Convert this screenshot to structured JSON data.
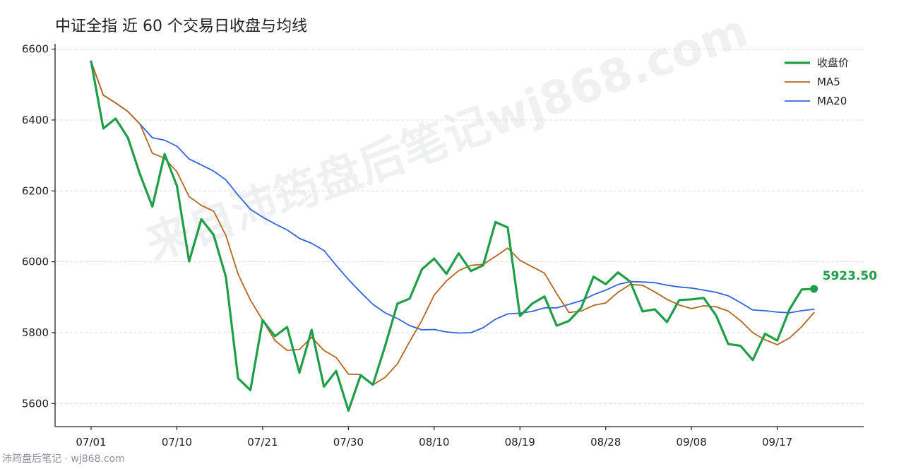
{
  "colors": {
    "close": "#1e9e46",
    "ma5": "#b5651d",
    "ma20": "#2f64dc",
    "grid": "#dddddd",
    "axis": "#222222"
  },
  "watermark": "来自沛筠盘后笔记wj868.com",
  "footer": "沛筠盘后笔记 · wj868.com",
  "chart_data": {
    "type": "line",
    "title": "中证全指 近 60 个交易日收盘与均线",
    "xlabel": "",
    "ylabel": "",
    "ylim": [
      5535,
      6615
    ],
    "yticks": [
      5600,
      5800,
      6000,
      6200,
      6400,
      6600
    ],
    "ytick_labels": [
      "5600",
      "5800",
      "6000",
      "6200",
      "6400",
      "6600"
    ],
    "xticks": [
      0,
      7,
      14,
      21,
      28,
      35,
      42,
      49,
      56
    ],
    "xtick_labels": [
      "07/01",
      "07/10",
      "07/21",
      "07/30",
      "08/10",
      "08/19",
      "08/28",
      "09/08",
      "09/17"
    ],
    "grid": "horizontal dashed",
    "legend_position": "top-right",
    "last_value_label": "5923.50",
    "series": [
      {
        "name": "收盘价",
        "values": [
          6565,
          6376,
          6404,
          6350,
          6246,
          6156,
          6304,
          6214,
          6001,
          6120,
          6076,
          5957,
          5671,
          5638,
          5835,
          5790,
          5816,
          5687,
          5808,
          5648,
          5692,
          5580,
          5680,
          5653,
          5763,
          5882,
          5896,
          5979,
          6009,
          5966,
          6024,
          5974,
          5990,
          6112,
          6097,
          5847,
          5882,
          5902,
          5820,
          5833,
          5870,
          5958,
          5937,
          5970,
          5944,
          5860,
          5866,
          5830,
          5892,
          5894,
          5898,
          5849,
          5768,
          5763,
          5723,
          5797,
          5778,
          5866,
          5922,
          5923.5
        ]
      },
      {
        "name": "MA5",
        "values": [
          6565,
          6470,
          6448,
          6424,
          6388,
          6306,
          6292,
          6254,
          6184,
          6159,
          6143,
          6074,
          5965,
          5892,
          5835,
          5778,
          5750,
          5753,
          5787,
          5750,
          5730,
          5683,
          5682,
          5653,
          5674,
          5712,
          5775,
          5835,
          5906,
          5946,
          5975,
          5990,
          5993,
          6015,
          6039,
          6004,
          5986,
          5968,
          5910,
          5857,
          5861,
          5877,
          5884,
          5914,
          5936,
          5934,
          5915,
          5894,
          5878,
          5868,
          5876,
          5873,
          5861,
          5834,
          5800,
          5780,
          5766,
          5785,
          5817,
          5857
        ]
      },
      {
        "name": "MA20",
        "values": [
          6565,
          6470,
          6448,
          6424,
          6388,
          6350,
          6343,
          6326,
          6290,
          6273,
          6256,
          6231,
          6188,
          6148,
          6126,
          6107,
          6090,
          6066,
          6052,
          6032,
          5990,
          5950,
          5914,
          5880,
          5856,
          5840,
          5820,
          5808,
          5809,
          5802,
          5799,
          5800,
          5814,
          5838,
          5853,
          5855,
          5860,
          5870,
          5870,
          5880,
          5890,
          5907,
          5920,
          5936,
          5944,
          5943,
          5941,
          5934,
          5929,
          5926,
          5920,
          5914,
          5904,
          5885,
          5864,
          5862,
          5858,
          5856,
          5862,
          5866
        ]
      }
    ]
  }
}
